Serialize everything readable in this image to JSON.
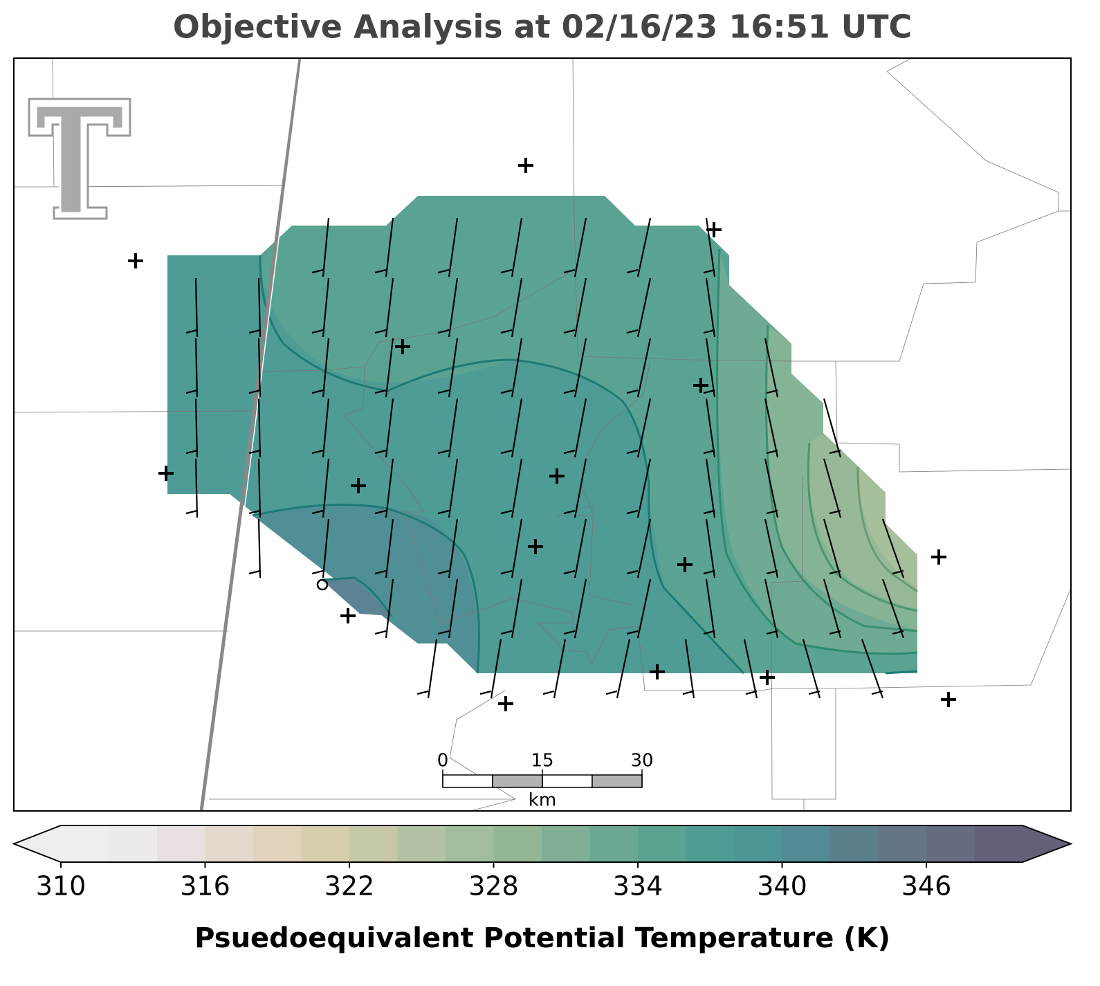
{
  "title": "Objective Analysis at 02/16/23 16:51 UTC",
  "scale_bar": {
    "ticks": [
      0,
      15,
      30
    ],
    "unit": "km"
  },
  "colorbar": {
    "label": "Psuedoequivalent Potential Temperature (K)",
    "lim": [
      310,
      350
    ],
    "ticks": [
      310,
      316,
      322,
      328,
      334,
      340,
      346
    ],
    "colors": [
      "#efedf2",
      "#eeebec",
      "#e8e1df",
      "#e5d9cd",
      "#e2d2bb",
      "#d6cead",
      "#c6c8a6",
      "#b3c2a3",
      "#a2bd9d",
      "#93b795",
      "#80af96",
      "#6aa893",
      "#5aa390",
      "#4e9d95",
      "#4d9596",
      "#528a95",
      "#5b7f8c",
      "#647685",
      "#666c80",
      "#665f7a"
    ]
  }
}
